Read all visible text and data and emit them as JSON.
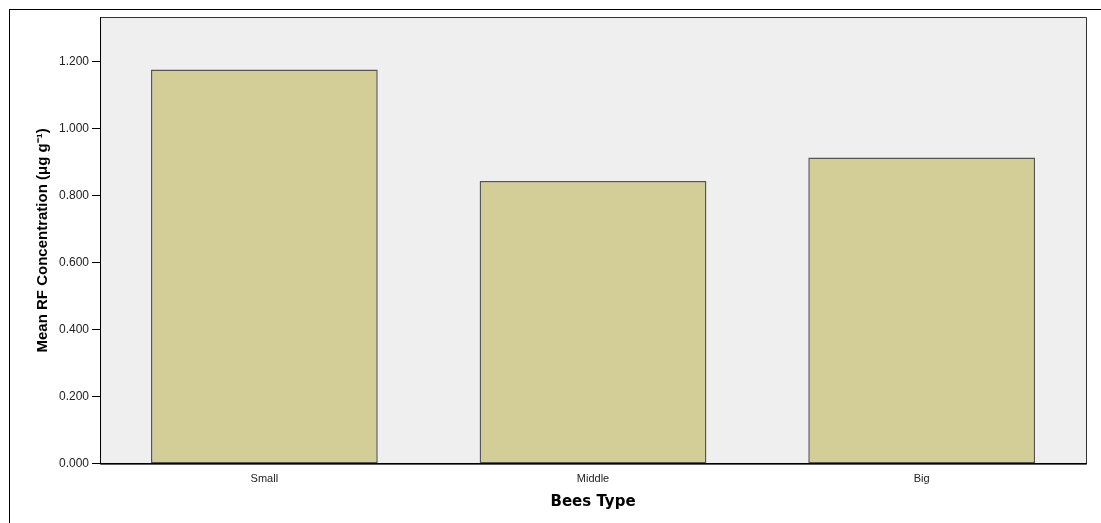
{
  "chart_data": {
    "type": "bar",
    "xlabel": "Bees Type",
    "ylabel": "Mean RF Concentration (μg g⁻¹)",
    "categories": [
      "Small",
      "Middle",
      "Big"
    ],
    "values": [
      1.176,
      0.844,
      0.914
    ],
    "color": "#d3cd97",
    "ylim": [
      0,
      1.333
    ],
    "yticks": [
      {
        "value": 0,
        "label": "0.000"
      },
      {
        "value": 0.2,
        "label": "0.200"
      },
      {
        "value": 0.4,
        "label": "0.400"
      },
      {
        "value": 0.6,
        "label": "0.600"
      },
      {
        "value": 0.8,
        "label": "0.800"
      },
      {
        "value": 1.0,
        "label": "1.000"
      },
      {
        "value": 1.2,
        "label": "1.200"
      }
    ],
    "grid": false,
    "legend": false
  }
}
